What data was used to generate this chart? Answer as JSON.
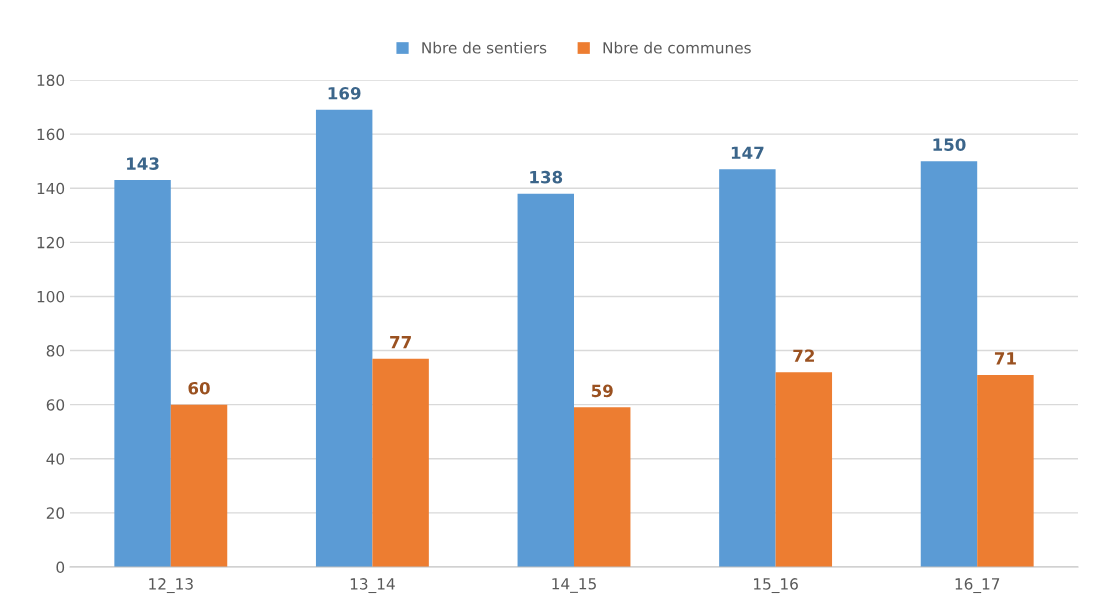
{
  "chart_data": {
    "type": "bar",
    "categories": [
      "12_13",
      "13_14",
      "14_15",
      "15_16",
      "16_17"
    ],
    "series": [
      {
        "name": "Nbre de sentiers",
        "color": "#5b9bd5",
        "values": [
          143,
          169,
          138,
          147,
          150
        ]
      },
      {
        "name": "Nbre de communes",
        "color": "#ed7d31",
        "values": [
          60,
          77,
          59,
          72,
          71
        ]
      }
    ],
    "ylim": [
      0,
      180
    ],
    "yticks": [
      0,
      20,
      40,
      60,
      80,
      100,
      120,
      140,
      160,
      180
    ],
    "grid": "y",
    "legend": "top",
    "data_labels": true
  }
}
